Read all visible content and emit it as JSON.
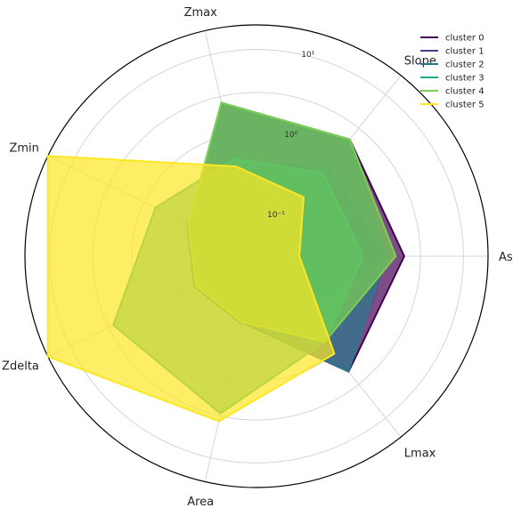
{
  "chart_data": {
    "type": "radar",
    "scale": "log",
    "axes": [
      "Aspect",
      "Slope",
      "Zmax",
      "Zmin",
      "Zdelta",
      "Area",
      "Lmax"
    ],
    "axis_labels_visible": [
      "Asp",
      "Slope",
      "Zmax",
      "Zmin",
      "Zdelta",
      "Area",
      "Lmax"
    ],
    "radial_range": [
      0.03,
      20
    ],
    "radial_ticks": [
      {
        "value": 0.1,
        "label": "10⁻¹"
      },
      {
        "value": 1,
        "label": "10⁰"
      },
      {
        "value": 10,
        "label": "10¹"
      }
    ],
    "grid": true,
    "legend": {
      "placement": "top-right",
      "entries": [
        "cluster 0",
        "cluster 1",
        "cluster 2",
        "cluster 3",
        "cluster 4",
        "cluster 5"
      ]
    },
    "series": [
      {
        "name": "cluster 0",
        "color": "#440154",
        "values": [
          1.9,
          2.0,
          2.5,
          0.25,
          0.2,
          0.2,
          1.9
        ]
      },
      {
        "name": "cluster 1",
        "color": "#414487",
        "values": [
          1.15,
          0.75,
          0.43,
          0.26,
          0.21,
          0.21,
          0.23
        ]
      },
      {
        "name": "cluster 2",
        "color": "#2a788e",
        "values": [
          1.15,
          2.0,
          2.5,
          0.25,
          0.2,
          0.19,
          1.9
        ]
      },
      {
        "name": "cluster 3",
        "color": "#22a884",
        "values": [
          0.6,
          0.6,
          0.5,
          0.7,
          2.6,
          2.8,
          0.65
        ]
      },
      {
        "name": "cluster 4",
        "color": "#7ad151",
        "values": [
          1.5,
          2.0,
          2.5,
          0.25,
          0.2,
          0.2,
          0.65
        ]
      },
      {
        "name": "cluster 5",
        "color": "#fde725",
        "values": [
          0.1,
          0.25,
          0.4,
          20,
          20,
          3.5,
          1.0
        ]
      }
    ]
  }
}
